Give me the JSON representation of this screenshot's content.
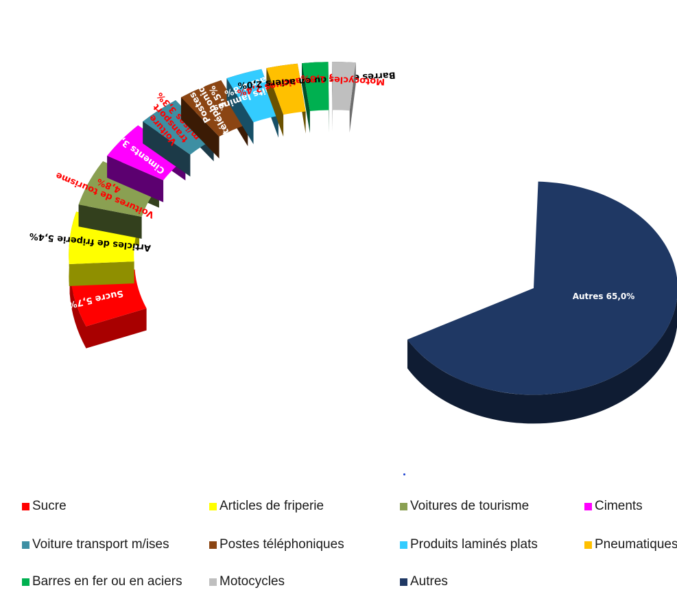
{
  "chart_data": {
    "type": "pie",
    "style": "exploded-3d",
    "slices": [
      {
        "label": "Sucre",
        "value": 5.7,
        "data_label": "Sucre  5,7%",
        "color": "#ff0000",
        "side": "#a80000",
        "label_color": "#ffffff"
      },
      {
        "label": "Articles de friperie",
        "value": 5.4,
        "data_label": "Articles de friperie 5,4%",
        "color": "#ffff00",
        "side": "#8f8f00",
        "label_color": "#000000"
      },
      {
        "label": "Voitures de tourisme",
        "value": 4.8,
        "data_label": "Voitures de tourisme\n4,8%",
        "color": "#8aa052",
        "side": "#33401d",
        "label_color": "#ff0000"
      },
      {
        "label": "Ciments",
        "value": 3.9,
        "data_label": "Ciments  3,9%",
        "color": "#ff00ff",
        "side": "#5c0070",
        "label_color": "#ffffff"
      },
      {
        "label": "Voiture transport m/ises",
        "value": 3.3,
        "data_label": "Voiture\ntransport\nm/ises 3,3%",
        "color": "#3d8fa3",
        "side": "#1c3a48",
        "label_color": "#ff0000"
      },
      {
        "label": "Postes téléphoniques",
        "value": 3.5,
        "data_label": "Postes\ntéléphoniques\n3,5%",
        "color": "#8b4513",
        "side": "#3b1b05",
        "label_color": "#ffffff"
      },
      {
        "label": "Produits laminés plats",
        "value": 2.8,
        "data_label": "Produits laminés\nplats 2,8%",
        "color": "#33ccff",
        "side": "#174f66",
        "label_color": "#ffffff"
      },
      {
        "label": "Pneumatiques",
        "value": 2.4,
        "data_label": "Pneumatiques 2,4%",
        "color": "#ffc000",
        "side": "#6b5100",
        "label_color": "#ff0000"
      },
      {
        "label": "Barres en fer ou en aciers",
        "value": 2.0,
        "data_label": "Barres en fer ou en aciers  2,0%",
        "color": "#00b050",
        "side": "#00502a",
        "label_color": "#000000"
      },
      {
        "label": "Motocycles",
        "value": 1.8,
        "data_label": "Motocycles 1,8%",
        "color": "#bfbfbf",
        "side": "#6e6e6e",
        "label_color": "#ff0000"
      },
      {
        "label": "Autres",
        "value": 65.0,
        "data_label": "Autres 65,0%",
        "color": "#1f3864",
        "side": "#0f1c33",
        "label_color": "#ffffff"
      }
    ],
    "legend": {
      "placement": "bottom",
      "items": [
        {
          "label": "Sucre",
          "color": "#ff0000"
        },
        {
          "label": "Articles de friperie",
          "color": "#ffff00"
        },
        {
          "label": "Voitures de tourisme",
          "color": "#8aa052"
        },
        {
          "label": "Ciments",
          "color": "#ff00ff"
        },
        {
          "label": "Voiture transport m/ises",
          "color": "#3d8fa3"
        },
        {
          "label": "Postes téléphoniques",
          "color": "#8b4513"
        },
        {
          "label": "Produits laminés plats",
          "color": "#33ccff"
        },
        {
          "label": "Pneumatiques",
          "color": "#ffc000"
        },
        {
          "label": "Barres en fer ou en aciers",
          "color": "#00b050"
        },
        {
          "label": "Motocycles",
          "color": "#bfbfbf"
        },
        {
          "label": "Autres",
          "color": "#1f3864"
        }
      ]
    }
  }
}
